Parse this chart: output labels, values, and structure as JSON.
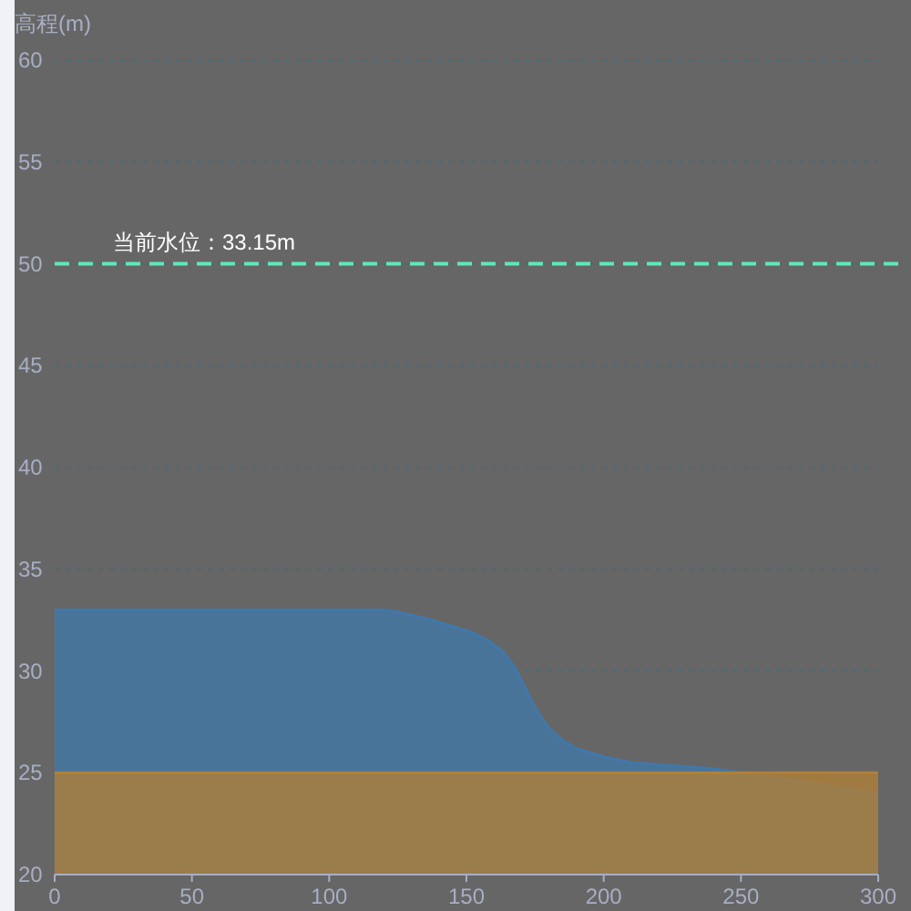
{
  "chart_data": {
    "type": "area",
    "ylabel": "高程(m)",
    "xlim": [
      0,
      300
    ],
    "xticks": [
      0,
      50,
      100,
      150,
      200,
      250,
      300
    ],
    "ylim": [
      20,
      60
    ],
    "yticks": [
      20,
      25,
      30,
      35,
      40,
      45,
      50,
      55,
      60
    ],
    "grid": "y",
    "series": [
      {
        "color": "#4278a8",
        "x": [
          0,
          20,
          40,
          60,
          80,
          100,
          120,
          125,
          135,
          145,
          152,
          158,
          163,
          167,
          171,
          175,
          180,
          185,
          190,
          200,
          210,
          220,
          230,
          240,
          250,
          260,
          270,
          280,
          290,
          300
        ],
        "values": [
          33,
          33,
          33,
          33,
          33,
          33,
          33,
          32.9,
          32.6,
          32.2,
          31.9,
          31.5,
          31,
          30.3,
          29.3,
          28.2,
          27.2,
          26.6,
          26.2,
          25.8,
          25.5,
          25.4,
          25.3,
          25.2,
          25,
          24.8,
          24.6,
          24.4,
          24.2,
          24
        ]
      },
      {
        "color": "#b08038",
        "x": [
          0,
          300
        ],
        "values": [
          25,
          25
        ]
      }
    ],
    "ref_lines": [
      {
        "axis": "y",
        "value": 50,
        "label": "当前水位：33.15m",
        "color": "#5ee8b8",
        "line_style": "dashed"
      }
    ]
  }
}
